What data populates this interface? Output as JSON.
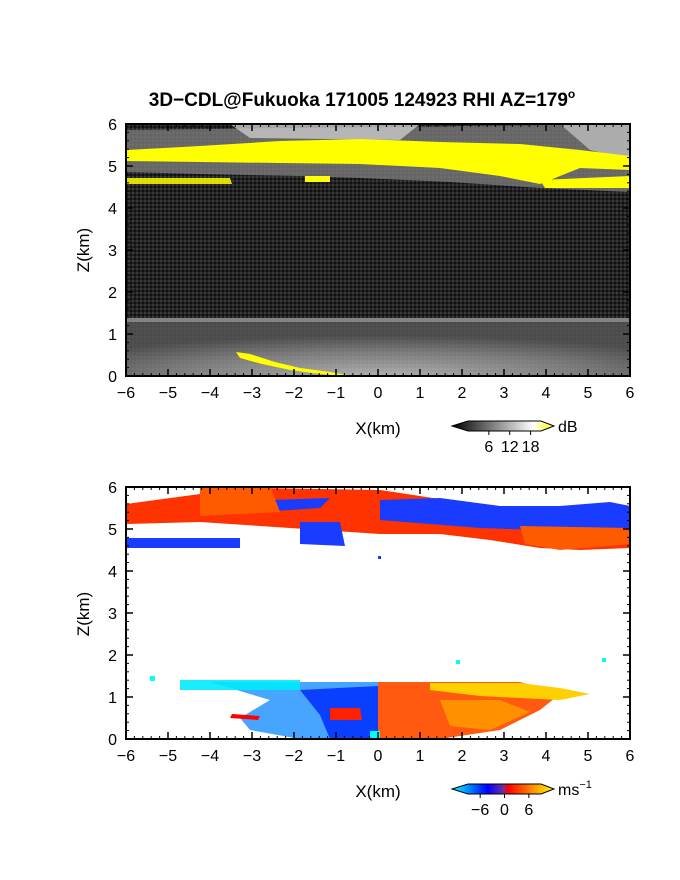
{
  "chart_data": [
    {
      "type": "heatmap",
      "title": "3D−CDL@Fukuoka 171005 124923 RHI AZ=179",
      "title_superscript": "o",
      "xlabel": "X(km)",
      "ylabel": "Z(km)",
      "xlim": [
        -6,
        6
      ],
      "ylim": [
        0,
        6
      ],
      "x_ticks": [
        "−6",
        "−5",
        "−4",
        "−3",
        "−2",
        "−1",
        "0",
        "1",
        "2",
        "3",
        "4",
        "5",
        "6"
      ],
      "y_ticks": [
        "0",
        "1",
        "2",
        "3",
        "4",
        "5",
        "6"
      ],
      "colorbar": {
        "unit": "dB",
        "ticks": [
          "6",
          "12",
          "18"
        ],
        "tick_values": [
          6,
          12,
          18
        ],
        "range": [
          0,
          21
        ],
        "colors": [
          "#000000",
          "#ffffff",
          "#ffff00"
        ]
      },
      "features": [
        {
          "kind": "yellow-layer",
          "x": [
            -6,
            6
          ],
          "z": [
            5.0,
            5.6
          ]
        },
        {
          "kind": "yellow-layer",
          "x": [
            -6,
            -4
          ],
          "z": [
            4.6,
            4.75
          ]
        },
        {
          "kind": "yellow-layer",
          "x": [
            3.5,
            6
          ],
          "z": [
            4.5,
            4.8
          ]
        },
        {
          "kind": "bright-boundary-layer",
          "x": [
            -6,
            6
          ],
          "z": [
            0,
            1.35
          ]
        },
        {
          "kind": "yellow-ground-echo",
          "x": [
            -3.3,
            -0.6
          ],
          "z": [
            0,
            0.5
          ]
        }
      ]
    },
    {
      "type": "heatmap",
      "title": "",
      "xlabel": "X(km)",
      "ylabel": "Z(km)",
      "xlim": [
        -6,
        6
      ],
      "ylim": [
        0,
        6
      ],
      "x_ticks": [
        "−6",
        "−5",
        "−4",
        "−3",
        "−2",
        "−1",
        "0",
        "1",
        "2",
        "3",
        "4",
        "5",
        "6"
      ],
      "y_ticks": [
        "0",
        "1",
        "2",
        "3",
        "4",
        "5",
        "6"
      ],
      "colorbar": {
        "unit": "ms",
        "unit_superscript": "−1",
        "ticks": [
          "−6",
          "0",
          "6"
        ],
        "tick_values": [
          -6,
          0,
          6
        ],
        "range": [
          -9,
          9
        ],
        "colors": [
          "#00ffff",
          "#0000ff",
          "#ff0000",
          "#ffff00"
        ]
      },
      "features": [
        {
          "kind": "upper-layer-mixed",
          "x": [
            -6,
            6
          ],
          "z": [
            4.5,
            6.0
          ],
          "value_range": [
            -6,
            6
          ]
        },
        {
          "kind": "lower-layer-negative",
          "x": [
            -3,
            0
          ],
          "z": [
            0,
            1.35
          ],
          "value_range": [
            -8,
            -1
          ]
        },
        {
          "kind": "lower-layer-positive",
          "x": [
            0,
            5
          ],
          "z": [
            0,
            1.35
          ],
          "value_range": [
            1,
            7
          ]
        }
      ]
    }
  ]
}
